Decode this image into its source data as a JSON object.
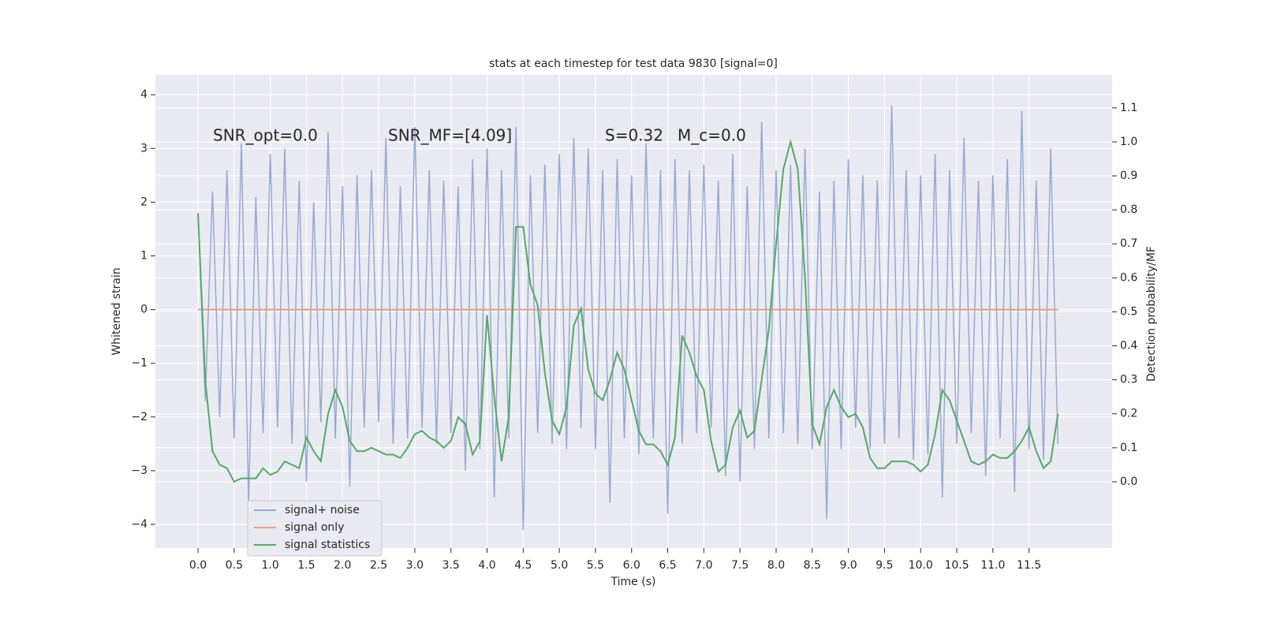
{
  "chart_data": {
    "type": "line",
    "title": "stats at each timestep for test data 9830 [signal=0]",
    "xlabel": "Time (s)",
    "ylabel": "Whitened strain",
    "y2label": "Detection probability/MF",
    "annotations": [
      "SNR_opt=0.0",
      "SNR_MF=[4.09]",
      "S=0.32",
      "M_c=0.0"
    ],
    "x": [
      0.0,
      0.1,
      0.2,
      0.3,
      0.4,
      0.5,
      0.6,
      0.7,
      0.8,
      0.9,
      1.0,
      1.1,
      1.2,
      1.3,
      1.4,
      1.5,
      1.6,
      1.7,
      1.8,
      1.9,
      2.0,
      2.1,
      2.2,
      2.3,
      2.4,
      2.5,
      2.6,
      2.7,
      2.8,
      2.9,
      3.0,
      3.1,
      3.2,
      3.3,
      3.4,
      3.5,
      3.6,
      3.7,
      3.8,
      3.9,
      4.0,
      4.1,
      4.2,
      4.3,
      4.4,
      4.5,
      4.6,
      4.7,
      4.8,
      4.9,
      5.0,
      5.1,
      5.2,
      5.3,
      5.4,
      5.5,
      5.6,
      5.7,
      5.8,
      5.9,
      6.0,
      6.1,
      6.2,
      6.3,
      6.4,
      6.5,
      6.6,
      6.7,
      6.8,
      6.9,
      7.0,
      7.1,
      7.2,
      7.3,
      7.4,
      7.5,
      7.6,
      7.7,
      7.8,
      7.9,
      8.0,
      8.1,
      8.2,
      8.3,
      8.4,
      8.5,
      8.6,
      8.7,
      8.8,
      8.9,
      9.0,
      9.1,
      9.2,
      9.3,
      9.4,
      9.5,
      9.6,
      9.7,
      9.8,
      9.9,
      10.0,
      10.1,
      10.2,
      10.3,
      10.4,
      10.5,
      10.6,
      10.7,
      10.8,
      10.9,
      11.0,
      11.1,
      11.2,
      11.3,
      11.4,
      11.5,
      11.6,
      11.7,
      11.8,
      11.9
    ],
    "series": [
      {
        "name": "signal+ noise",
        "color": "#99a9d0",
        "values": [
          1.8,
          -1.7,
          2.2,
          -2.0,
          2.6,
          -2.4,
          3.1,
          -3.6,
          2.1,
          -2.3,
          2.9,
          -2.2,
          3.0,
          -2.5,
          2.4,
          -3.2,
          2.0,
          -2.1,
          3.3,
          -2.4,
          2.3,
          -3.3,
          2.5,
          -2.2,
          2.6,
          -2.1,
          3.2,
          -2.5,
          2.3,
          -2.4,
          3.4,
          -2.2,
          2.6,
          -2.5,
          2.4,
          -2.3,
          2.3,
          -3.0,
          2.8,
          -2.6,
          3.0,
          -3.5,
          2.6,
          -2.4,
          3.4,
          -4.1,
          2.5,
          -2.3,
          2.7,
          -2.5,
          2.9,
          -2.6,
          3.2,
          -2.2,
          3.0,
          -2.6,
          2.6,
          -3.6,
          2.8,
          -2.4,
          2.5,
          -2.7,
          3.1,
          -2.4,
          2.6,
          -3.8,
          2.8,
          -2.5,
          2.6,
          -2.3,
          2.7,
          -2.2,
          2.4,
          -3.1,
          2.9,
          -3.2,
          2.3,
          -2.6,
          3.5,
          -2.4,
          2.6,
          -2.3,
          2.7,
          -2.5,
          3.0,
          -2.6,
          2.2,
          -3.9,
          2.4,
          -2.6,
          2.8,
          -2.2,
          2.5,
          -2.6,
          2.4,
          -2.5,
          3.8,
          -2.4,
          2.6,
          -2.8,
          2.5,
          -2.7,
          2.9,
          -3.5,
          2.6,
          -2.5,
          3.2,
          -2.3,
          2.4,
          -3.1,
          2.5,
          -2.4,
          2.8,
          -3.4,
          3.7,
          -2.6,
          2.4,
          -2.8,
          3.0,
          -2.5
        ]
      },
      {
        "name": "signal only",
        "color": "#e2a58a",
        "values": [
          0,
          0,
          0,
          0,
          0,
          0,
          0,
          0,
          0,
          0,
          0,
          0,
          0,
          0,
          0,
          0,
          0,
          0,
          0,
          0,
          0,
          0,
          0,
          0,
          0,
          0,
          0,
          0,
          0,
          0,
          0,
          0,
          0,
          0,
          0,
          0,
          0,
          0,
          0,
          0,
          0,
          0,
          0,
          0,
          0,
          0,
          0,
          0,
          0,
          0,
          0,
          0,
          0,
          0,
          0,
          0,
          0,
          0,
          0,
          0,
          0,
          0,
          0,
          0,
          0,
          0,
          0,
          0,
          0,
          0,
          0,
          0,
          0,
          0,
          0,
          0,
          0,
          0,
          0,
          0,
          0,
          0,
          0,
          0,
          0,
          0,
          0,
          0,
          0,
          0,
          0,
          0,
          0,
          0,
          0,
          0,
          0,
          0,
          0,
          0,
          0,
          0,
          0,
          0,
          0,
          0,
          0,
          0,
          0,
          0,
          0,
          0,
          0,
          0,
          0,
          0,
          0,
          0,
          0,
          0
        ]
      },
      {
        "name": "signal statistics",
        "color": "#55a868",
        "axis": "y2",
        "values": [
          0.79,
          0.3,
          0.09,
          0.05,
          0.04,
          0.0,
          0.01,
          0.01,
          0.01,
          0.04,
          0.02,
          0.03,
          0.06,
          0.05,
          0.04,
          0.13,
          0.09,
          0.06,
          0.2,
          0.27,
          0.22,
          0.12,
          0.09,
          0.09,
          0.1,
          0.09,
          0.08,
          0.08,
          0.07,
          0.1,
          0.14,
          0.15,
          0.13,
          0.12,
          0.1,
          0.12,
          0.19,
          0.17,
          0.08,
          0.12,
          0.49,
          0.25,
          0.06,
          0.19,
          0.75,
          0.75,
          0.58,
          0.52,
          0.32,
          0.18,
          0.14,
          0.22,
          0.46,
          0.51,
          0.33,
          0.26,
          0.24,
          0.3,
          0.38,
          0.33,
          0.24,
          0.15,
          0.11,
          0.11,
          0.09,
          0.05,
          0.13,
          0.43,
          0.38,
          0.31,
          0.27,
          0.12,
          0.03,
          0.05,
          0.16,
          0.21,
          0.13,
          0.15,
          0.3,
          0.45,
          0.7,
          0.92,
          1.0,
          0.92,
          0.6,
          0.17,
          0.11,
          0.22,
          0.27,
          0.22,
          0.19,
          0.2,
          0.16,
          0.07,
          0.04,
          0.04,
          0.06,
          0.06,
          0.06,
          0.05,
          0.03,
          0.05,
          0.14,
          0.27,
          0.24,
          0.18,
          0.12,
          0.06,
          0.05,
          0.06,
          0.08,
          0.07,
          0.07,
          0.09,
          0.12,
          0.16,
          0.09,
          0.04,
          0.06,
          0.2
        ]
      }
    ],
    "xlim": [
      -0.59,
      12.65
    ],
    "xticks": [
      {
        "value": 0,
        "label": "0.0"
      },
      0.5,
      {
        "value": 1,
        "label": "1.0"
      },
      1.5,
      {
        "value": 2,
        "label": "2.0"
      },
      2.5,
      {
        "value": 3,
        "label": "3.0"
      },
      3.5,
      {
        "value": 4,
        "label": "4.0"
      },
      4.5,
      {
        "value": 5,
        "label": "5.0"
      },
      5.5,
      {
        "value": 6,
        "label": "6.0"
      },
      6.5,
      {
        "value": 7,
        "label": "7.0"
      },
      7.5,
      {
        "value": 8,
        "label": "8.0"
      },
      8.5,
      {
        "value": 9,
        "label": "9.0"
      },
      9.5,
      {
        "value": 10,
        "label": "10.0"
      },
      10.5,
      {
        "value": 11,
        "label": "11.0"
      },
      11.5
    ],
    "ylim": [
      -4.44,
      4.37
    ],
    "yticks": [
      {
        "value": -4,
        "label": "−4"
      },
      {
        "value": -3,
        "label": "−3"
      },
      {
        "value": -2,
        "label": "−2"
      },
      {
        "value": -1,
        "label": "−1"
      },
      0,
      1,
      2,
      3,
      4
    ],
    "y2lim": [
      -0.195,
      1.197
    ],
    "y2ticks": [
      {
        "value": 0,
        "label": "0.0"
      },
      0.1,
      0.2,
      0.3,
      0.4,
      0.5,
      0.6,
      0.7,
      0.8,
      0.9,
      {
        "value": 1,
        "label": "1.0"
      },
      1.1
    ],
    "grid": true,
    "legend": "lower left"
  }
}
